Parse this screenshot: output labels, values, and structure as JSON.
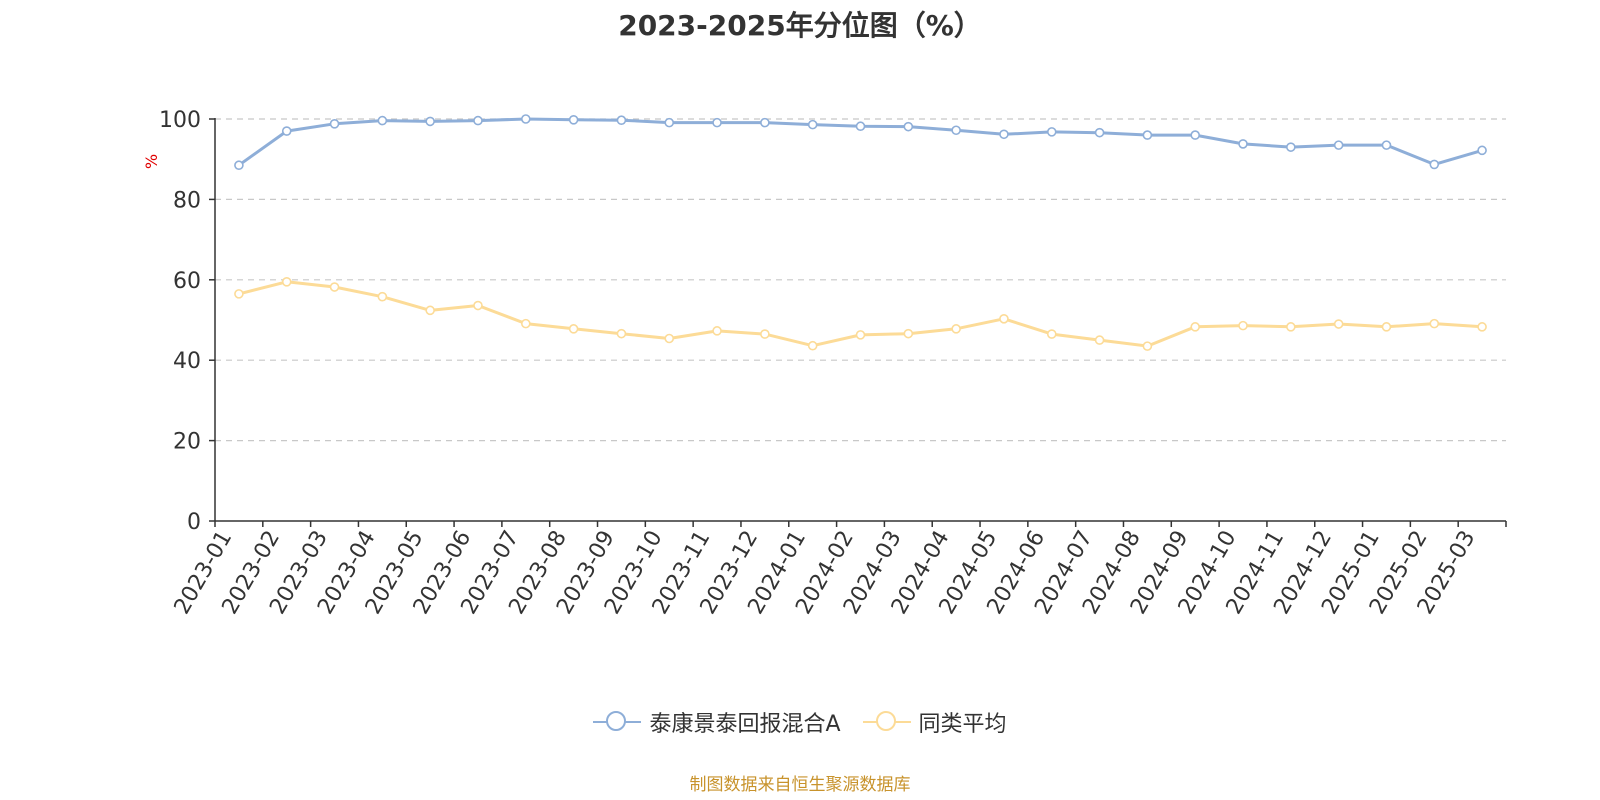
{
  "title": "2023-2025年分位图（%）",
  "source_text": "制图数据来自恒生聚源数据库",
  "chart_data": {
    "type": "line",
    "title": "2023-2025年分位图（%）",
    "xlabel": "",
    "ylabel": "%",
    "ylim": [
      0,
      100
    ],
    "yticks": [
      0,
      20,
      40,
      60,
      80,
      100
    ],
    "grid": true,
    "legend_position": "bottom-center",
    "categories": [
      "2023-01",
      "2023-02",
      "2023-03",
      "2023-04",
      "2023-05",
      "2023-06",
      "2023-07",
      "2023-08",
      "2023-09",
      "2023-10",
      "2023-11",
      "2023-12",
      "2024-01",
      "2024-02",
      "2024-03",
      "2024-04",
      "2024-05",
      "2024-06",
      "2024-07",
      "2024-08",
      "2024-09",
      "2024-10",
      "2024-11",
      "2024-12",
      "2025-01",
      "2025-02",
      "2025-03"
    ],
    "series": [
      {
        "name": "泰康景泰回报混合A",
        "color": "#8eaed8",
        "values": [
          88.5,
          97.0,
          98.8,
          99.6,
          99.4,
          99.6,
          100.0,
          99.8,
          99.7,
          99.1,
          99.1,
          99.1,
          98.6,
          98.2,
          98.1,
          97.2,
          96.2,
          96.8,
          96.6,
          96.0,
          96.0,
          93.8,
          93.0,
          93.5,
          93.5,
          88.7,
          92.2
        ]
      },
      {
        "name": "同类平均",
        "color": "#fcdb97",
        "values": [
          56.5,
          59.5,
          58.2,
          55.8,
          52.4,
          53.6,
          49.1,
          47.8,
          46.6,
          45.4,
          47.3,
          46.5,
          43.6,
          46.3,
          46.6,
          47.8,
          50.3,
          46.5,
          45.0,
          43.5,
          48.3,
          48.6,
          48.3,
          49.0,
          48.3,
          49.1,
          48.3
        ]
      }
    ]
  }
}
